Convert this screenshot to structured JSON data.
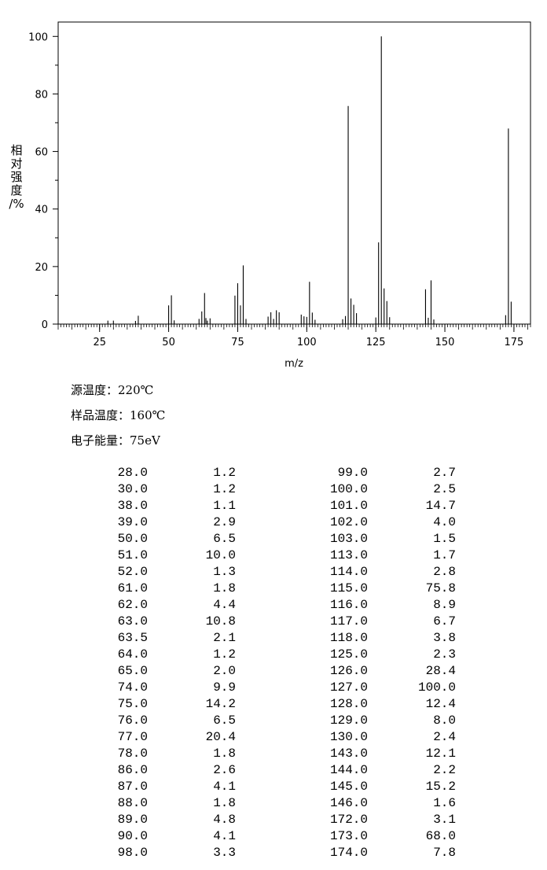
{
  "chart_data": {
    "type": "bar",
    "xlabel": "m/z",
    "ylabel_chars": [
      "相",
      "对",
      "强",
      "度",
      "/%"
    ],
    "xlim": [
      10,
      181
    ],
    "ylim": [
      0,
      105
    ],
    "x_ticks": [
      25,
      50,
      75,
      100,
      125,
      150,
      175
    ],
    "y_ticks": [
      0,
      20,
      40,
      60,
      80,
      100
    ],
    "grid": false,
    "peaks": [
      {
        "mz": 28.0,
        "intensity": 1.2
      },
      {
        "mz": 30.0,
        "intensity": 1.2
      },
      {
        "mz": 38.0,
        "intensity": 1.1
      },
      {
        "mz": 39.0,
        "intensity": 2.9
      },
      {
        "mz": 50.0,
        "intensity": 6.5
      },
      {
        "mz": 51.0,
        "intensity": 10.0
      },
      {
        "mz": 52.0,
        "intensity": 1.3
      },
      {
        "mz": 61.0,
        "intensity": 1.8
      },
      {
        "mz": 62.0,
        "intensity": 4.4
      },
      {
        "mz": 63.0,
        "intensity": 10.8
      },
      {
        "mz": 63.5,
        "intensity": 2.1
      },
      {
        "mz": 64.0,
        "intensity": 1.2
      },
      {
        "mz": 65.0,
        "intensity": 2.0
      },
      {
        "mz": 74.0,
        "intensity": 9.9
      },
      {
        "mz": 75.0,
        "intensity": 14.2
      },
      {
        "mz": 76.0,
        "intensity": 6.5
      },
      {
        "mz": 77.0,
        "intensity": 20.4
      },
      {
        "mz": 78.0,
        "intensity": 1.8
      },
      {
        "mz": 86.0,
        "intensity": 2.6
      },
      {
        "mz": 87.0,
        "intensity": 4.1
      },
      {
        "mz": 88.0,
        "intensity": 1.8
      },
      {
        "mz": 89.0,
        "intensity": 4.8
      },
      {
        "mz": 90.0,
        "intensity": 4.1
      },
      {
        "mz": 98.0,
        "intensity": 3.3
      },
      {
        "mz": 99.0,
        "intensity": 2.7
      },
      {
        "mz": 100.0,
        "intensity": 2.5
      },
      {
        "mz": 101.0,
        "intensity": 14.7
      },
      {
        "mz": 102.0,
        "intensity": 4.0
      },
      {
        "mz": 103.0,
        "intensity": 1.5
      },
      {
        "mz": 113.0,
        "intensity": 1.7
      },
      {
        "mz": 114.0,
        "intensity": 2.8
      },
      {
        "mz": 115.0,
        "intensity": 75.8
      },
      {
        "mz": 116.0,
        "intensity": 8.9
      },
      {
        "mz": 117.0,
        "intensity": 6.7
      },
      {
        "mz": 118.0,
        "intensity": 3.8
      },
      {
        "mz": 125.0,
        "intensity": 2.3
      },
      {
        "mz": 126.0,
        "intensity": 28.4
      },
      {
        "mz": 127.0,
        "intensity": 100.0
      },
      {
        "mz": 128.0,
        "intensity": 12.4
      },
      {
        "mz": 129.0,
        "intensity": 8.0
      },
      {
        "mz": 130.0,
        "intensity": 2.4
      },
      {
        "mz": 143.0,
        "intensity": 12.1
      },
      {
        "mz": 144.0,
        "intensity": 2.2
      },
      {
        "mz": 145.0,
        "intensity": 15.2
      },
      {
        "mz": 146.0,
        "intensity": 1.6
      },
      {
        "mz": 172.0,
        "intensity": 3.1
      },
      {
        "mz": 173.0,
        "intensity": 68.0
      },
      {
        "mz": 174.0,
        "intensity": 7.8
      }
    ]
  },
  "conditions": {
    "source_temp": "源温度：220℃",
    "sample_temp": "样品温度：160℃",
    "electron_energy": "电子能量：75eV"
  },
  "table_rows": [
    {
      "mz1": "28.0",
      "int1": "1.2",
      "mz2": "99.0",
      "int2": "2.7"
    },
    {
      "mz1": "30.0",
      "int1": "1.2",
      "mz2": "100.0",
      "int2": "2.5"
    },
    {
      "mz1": "38.0",
      "int1": "1.1",
      "mz2": "101.0",
      "int2": "14.7"
    },
    {
      "mz1": "39.0",
      "int1": "2.9",
      "mz2": "102.0",
      "int2": "4.0"
    },
    {
      "mz1": "50.0",
      "int1": "6.5",
      "mz2": "103.0",
      "int2": "1.5"
    },
    {
      "mz1": "51.0",
      "int1": "10.0",
      "mz2": "113.0",
      "int2": "1.7"
    },
    {
      "mz1": "52.0",
      "int1": "1.3",
      "mz2": "114.0",
      "int2": "2.8"
    },
    {
      "mz1": "61.0",
      "int1": "1.8",
      "mz2": "115.0",
      "int2": "75.8"
    },
    {
      "mz1": "62.0",
      "int1": "4.4",
      "mz2": "116.0",
      "int2": "8.9"
    },
    {
      "mz1": "63.0",
      "int1": "10.8",
      "mz2": "117.0",
      "int2": "6.7"
    },
    {
      "mz1": "63.5",
      "int1": "2.1",
      "mz2": "118.0",
      "int2": "3.8"
    },
    {
      "mz1": "64.0",
      "int1": "1.2",
      "mz2": "125.0",
      "int2": "2.3"
    },
    {
      "mz1": "65.0",
      "int1": "2.0",
      "mz2": "126.0",
      "int2": "28.4"
    },
    {
      "mz1": "74.0",
      "int1": "9.9",
      "mz2": "127.0",
      "int2": "100.0"
    },
    {
      "mz1": "75.0",
      "int1": "14.2",
      "mz2": "128.0",
      "int2": "12.4"
    },
    {
      "mz1": "76.0",
      "int1": "6.5",
      "mz2": "129.0",
      "int2": "8.0"
    },
    {
      "mz1": "77.0",
      "int1": "20.4",
      "mz2": "130.0",
      "int2": "2.4"
    },
    {
      "mz1": "78.0",
      "int1": "1.8",
      "mz2": "143.0",
      "int2": "12.1"
    },
    {
      "mz1": "86.0",
      "int1": "2.6",
      "mz2": "144.0",
      "int2": "2.2"
    },
    {
      "mz1": "87.0",
      "int1": "4.1",
      "mz2": "145.0",
      "int2": "15.2"
    },
    {
      "mz1": "88.0",
      "int1": "1.8",
      "mz2": "146.0",
      "int2": "1.6"
    },
    {
      "mz1": "89.0",
      "int1": "4.8",
      "mz2": "172.0",
      "int2": "3.1"
    },
    {
      "mz1": "90.0",
      "int1": "4.1",
      "mz2": "173.0",
      "int2": "68.0"
    },
    {
      "mz1": "98.0",
      "int1": "3.3",
      "mz2": "174.0",
      "int2": "7.8"
    }
  ]
}
